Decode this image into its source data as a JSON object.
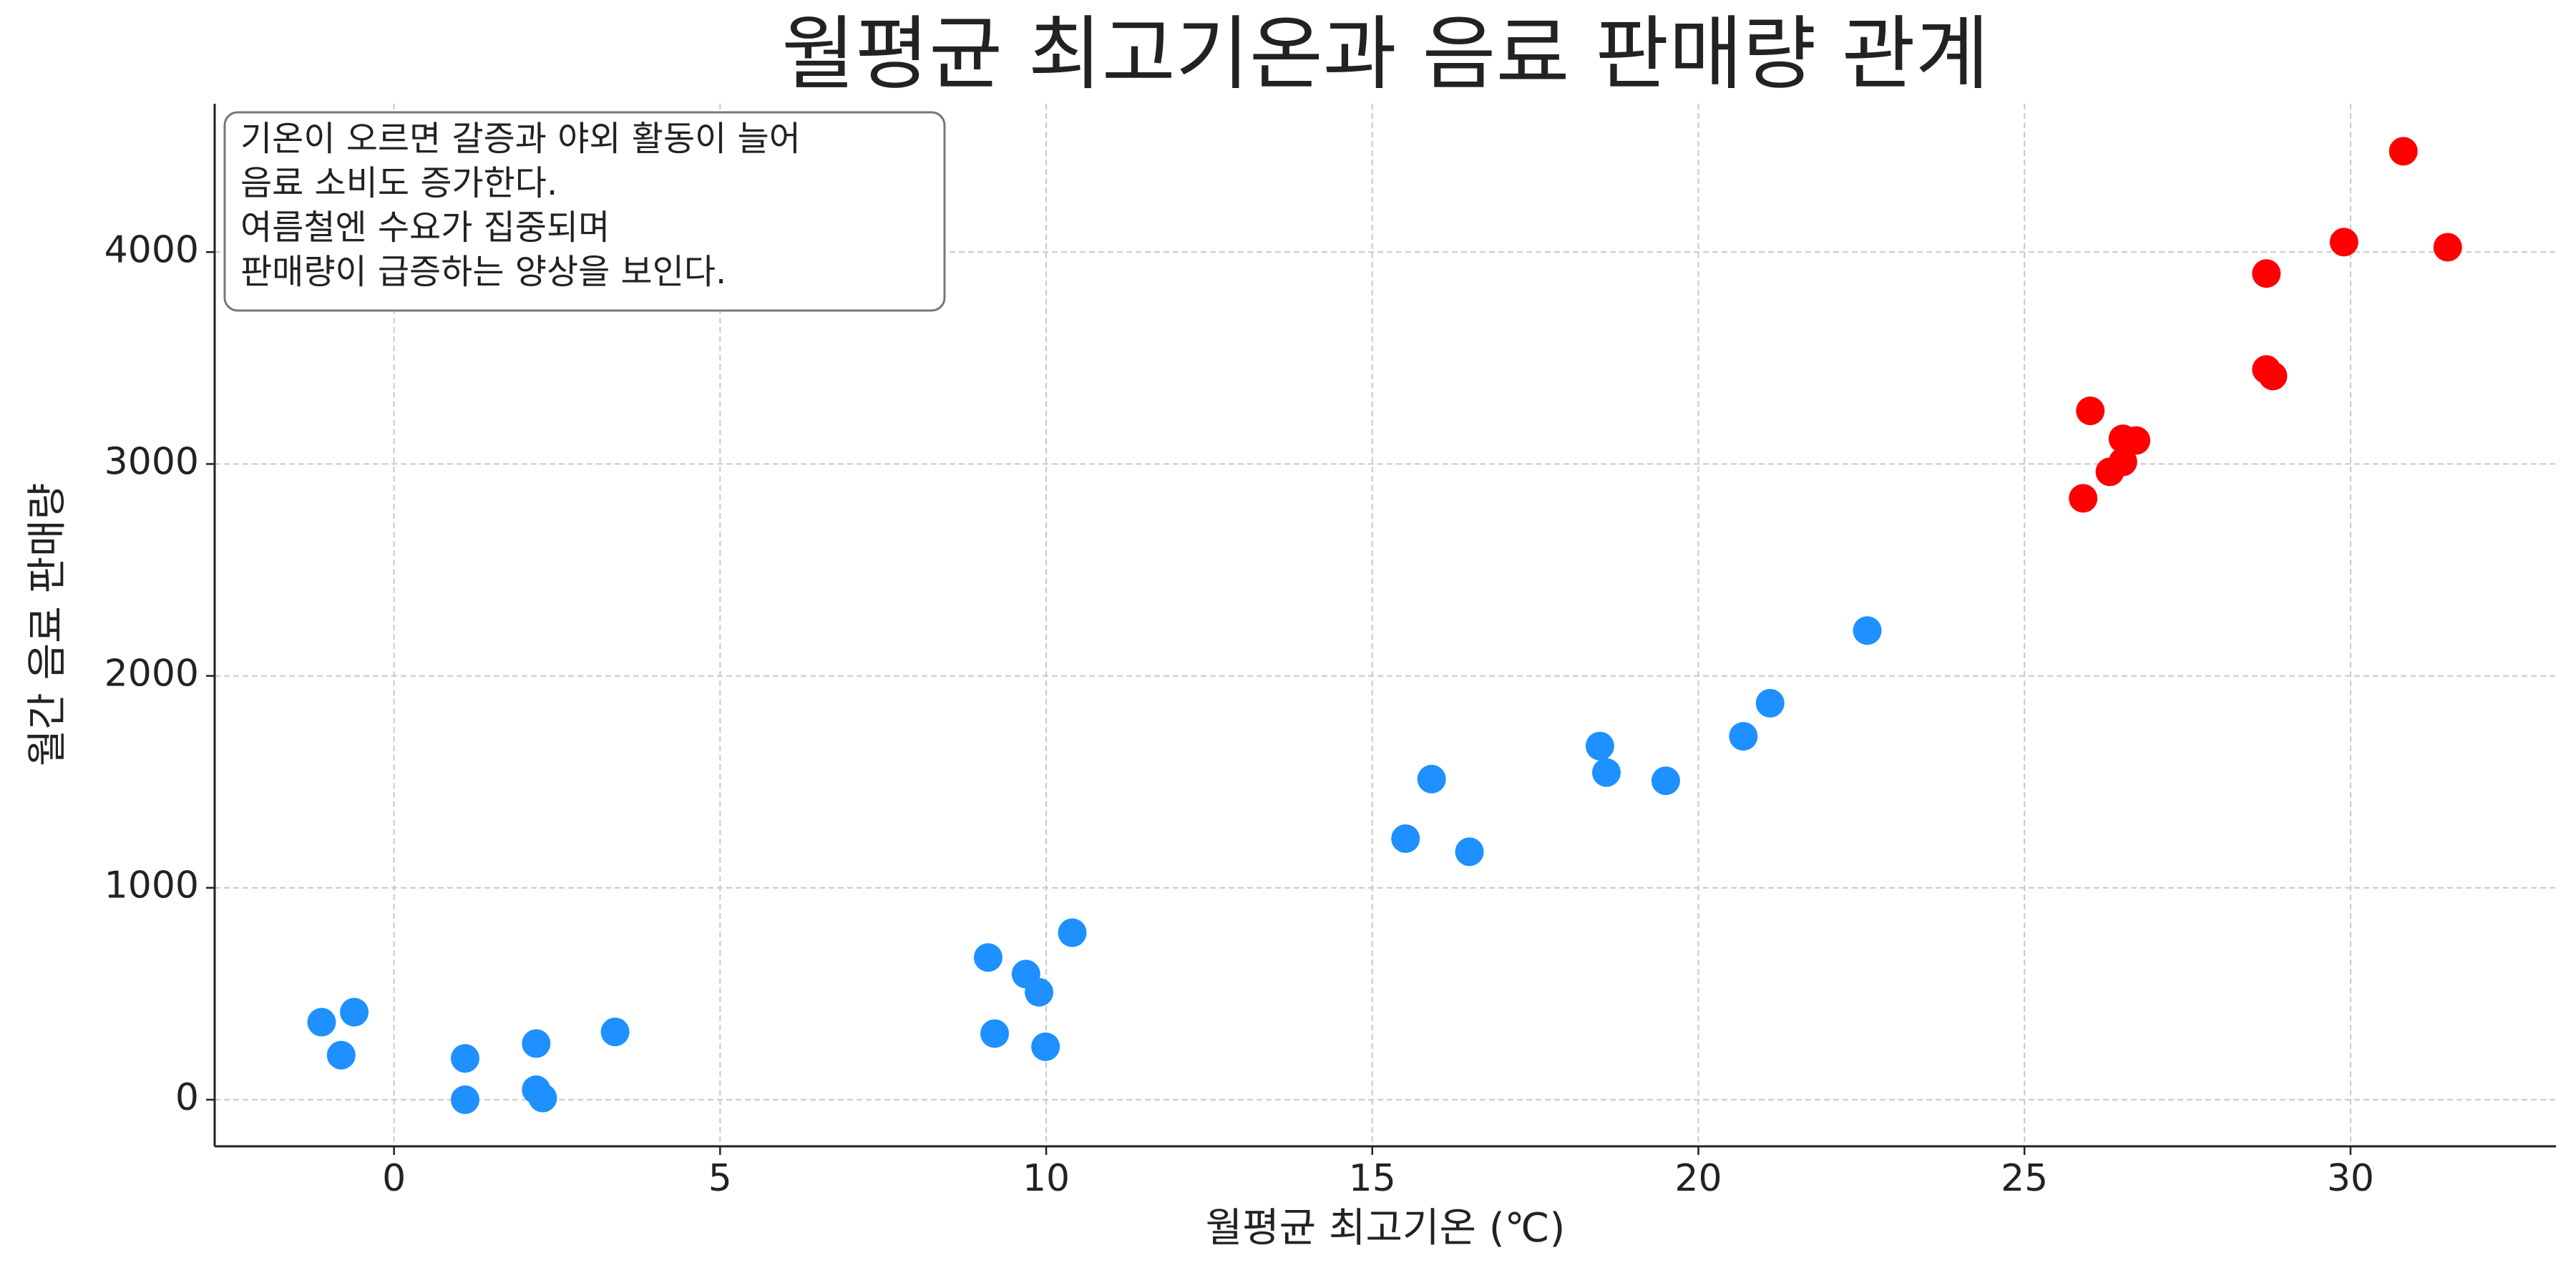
{
  "chart_data": {
    "type": "scatter",
    "title": "월평균 최고기온과 음료 판매량 관계",
    "x_label": "월평균 최고기온 (℃)",
    "y_label": "월간 음료 판매량",
    "annotation": [
      "기온이 오르면 갈증과 야외 활동이 늘어",
      "음료 소비도 증가한다.",
      "여름철엔 수요가 집중되며",
      "판매량이 급증하는 양상을 보인다."
    ],
    "groups": [
      {
        "color": "#1e90ff",
        "x": [
          -1.11,
          -0.61,
          -0.81,
          1.09,
          1.09,
          2.18,
          2.18,
          2.28,
          3.39,
          9.11,
          9.21,
          9.69,
          9.89,
          9.99,
          10.4,
          15.51,
          15.91,
          16.49,
          18.49,
          18.59,
          19.5,
          20.69,
          21.1,
          22.59
        ],
        "values": [
          366,
          413,
          210,
          195,
          0,
          265,
          47,
          8,
          320,
          671,
          312,
          593,
          507,
          250,
          788,
          1232,
          1513,
          1170,
          1669,
          1544,
          1505,
          1715,
          1871,
          2214
        ]
      },
      {
        "color": "#ff0000",
        "x": [
          25.9,
          26.01,
          26.31,
          26.51,
          26.51,
          26.71,
          28.71,
          28.71,
          28.81,
          29.9,
          30.81,
          31.49
        ],
        "values": [
          2838,
          3251,
          2963,
          3010,
          3119,
          3111,
          3899,
          3446,
          3415,
          4047,
          4476,
          4023
        ]
      }
    ],
    "xlim": [
      -2.75,
      33.15
    ],
    "xticks": [
      0,
      5,
      10,
      15,
      20,
      25,
      30
    ],
    "ylim": [
      -220,
      4700
    ],
    "yticks": [
      0,
      1000,
      2000,
      3000,
      4000
    ],
    "grid": true
  }
}
